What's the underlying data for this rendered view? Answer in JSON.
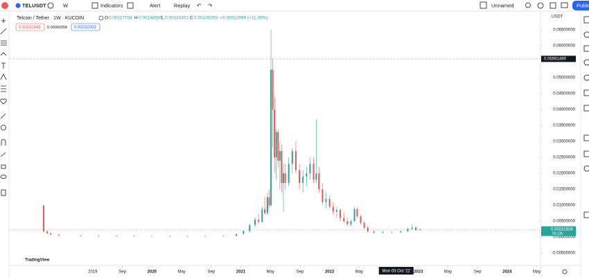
{
  "toolbar": {
    "symbol": "TELUSDT",
    "interval": "W",
    "indicators": "Indicators",
    "alert": "Alert",
    "replay": "Replay",
    "layout_name": "Unnamed",
    "publish": "Publish"
  },
  "legend": {
    "title": "Telcoin / Tether · 1W · KUCOIN",
    "open_label": "O",
    "open": "0.00117704",
    "high_label": "H",
    "high": "0.00148585",
    "low_label": "L",
    "low": "0.00116301",
    "close_label": "C",
    "close": "0.00130293",
    "change": "+0.00012999 (+11.08%)",
    "bid": "0.00231645",
    "spread": "0.00000358",
    "ask": "0.00232003"
  },
  "chart_data": {
    "type": "candlestick",
    "currency": "USDT",
    "watermark": "TradingView",
    "up_color": "#26a69a",
    "down_color": "#ef5350",
    "x": [
      2018.78,
      2018.82,
      2018.86,
      2018.95,
      2019.2,
      2019.4,
      2019.6,
      2019.8,
      2020.0,
      2020.2,
      2020.4,
      2020.6,
      2020.8,
      2020.95,
      2021.03,
      2021.1,
      2021.16,
      2021.2,
      2021.24,
      2021.27,
      2021.3,
      2021.32,
      2021.34,
      2021.36,
      2021.38,
      2021.4,
      2021.42,
      2021.44,
      2021.46,
      2021.48,
      2021.5,
      2021.54,
      2021.58,
      2021.62,
      2021.66,
      2021.7,
      2021.74,
      2021.78,
      2021.82,
      2021.85,
      2021.88,
      2021.92,
      2021.96,
      2022.0,
      2022.04,
      2022.08,
      2022.12,
      2022.16,
      2022.2,
      2022.24,
      2022.28,
      2022.31,
      2022.35,
      2022.39,
      2022.43,
      2022.5,
      2022.6,
      2022.7,
      2022.8,
      2022.88,
      2022.93,
      2022.97,
      2023.02
    ],
    "open": [
      0.0099,
      0.0018,
      0.0012,
      0.0008,
      0.0005,
      0.0004,
      0.0004,
      0.0003,
      0.0003,
      0.0003,
      0.0002,
      0.0003,
      0.0003,
      0.0004,
      0.001,
      0.0019,
      0.0038,
      0.0055,
      0.0048,
      0.0088,
      0.0075,
      0.0125,
      0.01,
      0.0525,
      0.04,
      0.025,
      0.033,
      0.024,
      0.027,
      0.017,
      0.02,
      0.017,
      0.023,
      0.027,
      0.021,
      0.017,
      0.019,
      0.02,
      0.023,
      0.018,
      0.02,
      0.015,
      0.011,
      0.012,
      0.0095,
      0.008,
      0.0085,
      0.006,
      0.005,
      0.004,
      0.005,
      0.0088,
      0.0065,
      0.0045,
      0.003,
      0.0018,
      0.0014,
      0.0016,
      0.0015,
      0.0018,
      0.0026,
      0.003,
      0.0022
    ],
    "high": [
      0.0101,
      0.0022,
      0.0015,
      0.001,
      0.0007,
      0.0006,
      0.0005,
      0.0005,
      0.0004,
      0.0004,
      0.0004,
      0.0005,
      0.0005,
      0.0012,
      0.0022,
      0.0042,
      0.0062,
      0.0075,
      0.0095,
      0.0128,
      0.014,
      0.015,
      0.065,
      0.056,
      0.044,
      0.034,
      0.034,
      0.03,
      0.029,
      0.023,
      0.023,
      0.025,
      0.028,
      0.03,
      0.023,
      0.021,
      0.022,
      0.025,
      0.025,
      0.037,
      0.022,
      0.017,
      0.014,
      0.013,
      0.011,
      0.0095,
      0.009,
      0.008,
      0.006,
      0.0055,
      0.0095,
      0.0092,
      0.007,
      0.005,
      0.0035,
      0.0022,
      0.002,
      0.0019,
      0.002,
      0.003,
      0.004,
      0.0034,
      0.0026
    ],
    "low": [
      0.0016,
      0.001,
      0.0006,
      0.0004,
      0.0003,
      0.0003,
      0.0002,
      0.0002,
      0.0002,
      0.0001,
      0.0001,
      0.0002,
      0.0002,
      0.0003,
      0.0008,
      0.0015,
      0.003,
      0.004,
      0.0045,
      0.007,
      0.007,
      0.009,
      0.0095,
      0.028,
      0.02,
      0.018,
      0.022,
      0.015,
      0.014,
      0.008,
      0.015,
      0.016,
      0.02,
      0.02,
      0.015,
      0.014,
      0.016,
      0.018,
      0.017,
      0.017,
      0.014,
      0.01,
      0.009,
      0.009,
      0.007,
      0.006,
      0.005,
      0.0045,
      0.0035,
      0.0035,
      0.0048,
      0.006,
      0.004,
      0.0025,
      0.0015,
      0.001,
      0.0011,
      0.0012,
      0.0012,
      0.0016,
      0.0022,
      0.002,
      0.002
    ],
    "close": [
      0.0018,
      0.0012,
      0.0008,
      0.0005,
      0.0004,
      0.0004,
      0.0003,
      0.0003,
      0.0003,
      0.0002,
      0.0003,
      0.0003,
      0.0004,
      0.001,
      0.0019,
      0.0038,
      0.0055,
      0.0048,
      0.0088,
      0.0075,
      0.0125,
      0.01,
      0.0525,
      0.04,
      0.025,
      0.033,
      0.024,
      0.027,
      0.017,
      0.02,
      0.017,
      0.023,
      0.027,
      0.021,
      0.017,
      0.019,
      0.02,
      0.023,
      0.018,
      0.02,
      0.015,
      0.011,
      0.012,
      0.0095,
      0.008,
      0.0085,
      0.006,
      0.005,
      0.004,
      0.005,
      0.0088,
      0.0065,
      0.0045,
      0.003,
      0.0018,
      0.0014,
      0.0016,
      0.0015,
      0.0018,
      0.0026,
      0.003,
      0.0022,
      0.0023
    ],
    "xlim": [
      2018.39,
      2024.375
    ],
    "ylim": [
      -0.0089,
      0.0709
    ],
    "xticks": [
      {
        "value": 2019.333,
        "label": "2019"
      },
      {
        "value": 2019.667,
        "label": "Sep"
      },
      2020,
      {
        "value": 2020.333,
        "label": "May"
      },
      {
        "value": 2020.667,
        "label": "Sep"
      },
      2021,
      {
        "value": 2021.333,
        "label": "May"
      },
      {
        "value": 2021.667,
        "label": "Sep"
      },
      2022,
      {
        "value": 2022.333,
        "label": "May"
      },
      2023,
      {
        "value": 2023.333,
        "label": "May"
      },
      {
        "value": 2023.667,
        "label": "Sep"
      },
      2024,
      {
        "value": 2024.333,
        "label": "May"
      }
    ],
    "yticks": [
      {
        "value": 0.065,
        "label": "0.06500000"
      },
      {
        "value": 0.06,
        "label": "0.06000000"
      },
      {
        "value": 0.05,
        "label": "0.05000000"
      },
      {
        "value": 0.045,
        "label": "0.04500000"
      },
      {
        "value": 0.04,
        "label": "0.04000000"
      },
      {
        "value": 0.035,
        "label": "0.03500000"
      },
      {
        "value": 0.03,
        "label": "0.03000000"
      },
      {
        "value": 0.025,
        "label": "0.02500000"
      },
      {
        "value": 0.02,
        "label": "0.02000000"
      },
      {
        "value": 0.015,
        "label": "0.01500000"
      },
      {
        "value": 0.01,
        "label": "0.01000000"
      },
      {
        "value": 0.005,
        "label": "0.00500000"
      },
      {
        "value": 0,
        "label": "0.00000000"
      },
      {
        "value": -0.005,
        "label": "-0.00500000"
      }
    ],
    "crosshair_price": 0.05591499,
    "crosshair_date": "Mon 03 Oct '22",
    "crosshair_x": 2022.75,
    "last_price": 0.00231639,
    "countdown": "04:13h"
  }
}
